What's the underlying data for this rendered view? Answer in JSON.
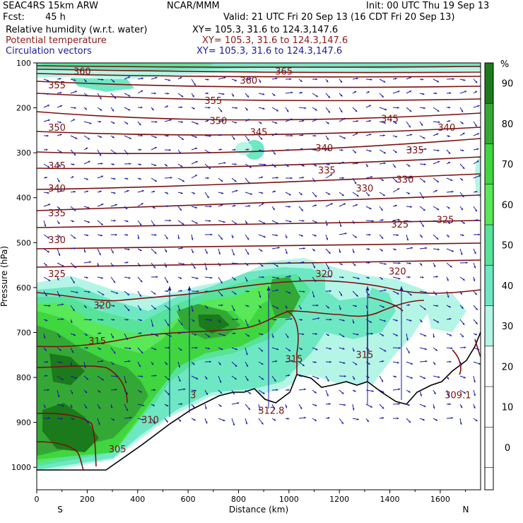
{
  "header": {
    "model": "SEAC4RS 15km ARW",
    "org": "NCAR/MMM",
    "init": "Init: 00 UTC Thu 19 Sep 13",
    "fcst_label": "Fcst:",
    "fcst_value": "45 h",
    "valid": "Valid: 21 UTC Fri 20 Sep 13 (16 CDT Fri 20 Sep 13)",
    "fields": [
      {
        "name": "Relative humidity (w.r.t. water)",
        "xy": "XY= 105.3, 31.6 to 124.3,147.6",
        "color": "#000000"
      },
      {
        "name": "Potential temperature",
        "xy": "XY= 105.3, 31.6 to 124.3,147.6",
        "color": "#8b1a1a"
      },
      {
        "name": "Circulation vectors",
        "xy": "XY= 105.3, 31.6 to 124.3,147.6",
        "color": "#1a1aa0"
      }
    ]
  },
  "chart_data": {
    "type": "heatmap",
    "xlabel": "Distance (km)",
    "ylabel": "Pressure (hPa)",
    "xlim": [
      0,
      1760
    ],
    "ylim": [
      1050,
      100
    ],
    "x_ticks": [
      0,
      200,
      400,
      600,
      800,
      1000,
      1200,
      1400,
      1600
    ],
    "y_ticks": [
      100,
      200,
      300,
      400,
      500,
      600,
      700,
      800,
      900,
      1000
    ],
    "x_end_labels": [
      "S",
      "N"
    ],
    "colorbar": {
      "unit": "%",
      "ticks": [
        90,
        80,
        70,
        60,
        50,
        40,
        30,
        20,
        10,
        0
      ],
      "levels": [
        {
          "from": 90,
          "to": 100,
          "color": "#1b7a1b"
        },
        {
          "from": 80,
          "to": 90,
          "color": "#34a834"
        },
        {
          "from": 70,
          "to": 80,
          "color": "#3fd63f"
        },
        {
          "from": 60,
          "to": 70,
          "color": "#58e858"
        },
        {
          "from": 50,
          "to": 60,
          "color": "#57e39a"
        },
        {
          "from": 40,
          "to": 50,
          "color": "#6ee8c2"
        },
        {
          "from": 30,
          "to": 40,
          "color": "#b4f5e6"
        }
      ]
    },
    "theta_labels": [
      {
        "text": "360",
        "x": 180,
        "p": 120
      },
      {
        "text": "365",
        "x": 980,
        "p": 120
      },
      {
        "text": "355",
        "x": 80,
        "p": 150
      },
      {
        "text": "360",
        "x": 840,
        "p": 140
      },
      {
        "text": "355",
        "x": 700,
        "p": 185
      },
      {
        "text": "350",
        "x": 80,
        "p": 245
      },
      {
        "text": "350",
        "x": 720,
        "p": 230
      },
      {
        "text": "345",
        "x": 880,
        "p": 255
      },
      {
        "text": "345",
        "x": 1400,
        "p": 225
      },
      {
        "text": "340",
        "x": 1625,
        "p": 245
      },
      {
        "text": "340",
        "x": 1140,
        "p": 290
      },
      {
        "text": "335",
        "x": 1500,
        "p": 295
      },
      {
        "text": "345",
        "x": 80,
        "p": 330
      },
      {
        "text": "335",
        "x": 1150,
        "p": 340
      },
      {
        "text": "330",
        "x": 1460,
        "p": 360
      },
      {
        "text": "330",
        "x": 1300,
        "p": 380
      },
      {
        "text": "340",
        "x": 80,
        "p": 380
      },
      {
        "text": "335",
        "x": 80,
        "p": 435
      },
      {
        "text": "325",
        "x": 1440,
        "p": 460
      },
      {
        "text": "325",
        "x": 1620,
        "p": 450
      },
      {
        "text": "330",
        "x": 80,
        "p": 495
      },
      {
        "text": "325",
        "x": 80,
        "p": 570
      },
      {
        "text": "320",
        "x": 1140,
        "p": 570
      },
      {
        "text": "320",
        "x": 1430,
        "p": 565
      },
      {
        "text": "320",
        "x": 260,
        "p": 640
      },
      {
        "text": "315",
        "x": 240,
        "p": 720
      },
      {
        "text": "315",
        "x": 1020,
        "p": 760
      },
      {
        "text": "315",
        "x": 1300,
        "p": 750
      },
      {
        "text": "310",
        "x": 450,
        "p": 895
      },
      {
        "text": "305",
        "x": 320,
        "p": 960
      },
      {
        "text": "312.8",
        "x": 930,
        "p": 875
      },
      {
        "text": "3",
        "x": 620,
        "p": 840
      },
      {
        "text": "309.1",
        "x": 1670,
        "p": 840
      }
    ]
  }
}
